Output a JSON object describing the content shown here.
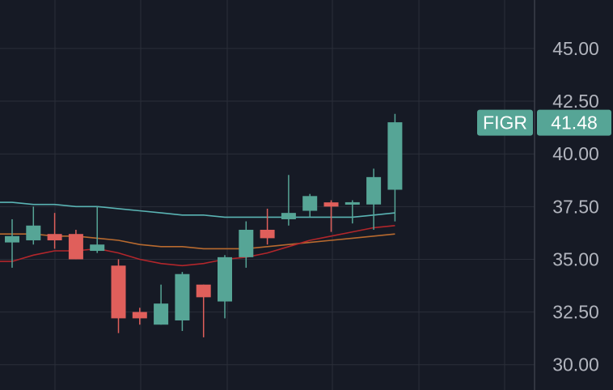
{
  "chart_data": {
    "type": "candlestick",
    "ylim": [
      28.8,
      47.3
    ],
    "y_ticks": [
      "30.00",
      "32.50",
      "35.00",
      "37.50",
      "40.00",
      "42.50",
      "45.00"
    ],
    "grid": true,
    "symbol_label": "FIGR",
    "last_price_label": "41.48",
    "last_price": 41.48,
    "colors": {
      "background": "#161a25",
      "grid": "#2a2e39",
      "up": "#56a596",
      "down": "#e05f5b",
      "ma_long": "#5ab4b4",
      "ma_mid": "#b86a2f",
      "ma_short": "#b2262b",
      "tag": "#56a596",
      "axis_text": "#b2b5be"
    },
    "candles": [
      {
        "o": 35.8,
        "h": 36.9,
        "l": 34.6,
        "c": 36.1
      },
      {
        "o": 35.9,
        "h": 37.5,
        "l": 35.7,
        "c": 36.6
      },
      {
        "o": 36.2,
        "h": 37.2,
        "l": 35.5,
        "c": 35.9
      },
      {
        "o": 36.2,
        "h": 36.4,
        "l": 35.0,
        "c": 35.0
      },
      {
        "o": 35.4,
        "h": 37.5,
        "l": 35.3,
        "c": 35.7
      },
      {
        "o": 34.7,
        "h": 35.0,
        "l": 31.5,
        "c": 32.2
      },
      {
        "o": 32.5,
        "h": 32.7,
        "l": 31.9,
        "c": 32.2
      },
      {
        "o": 31.9,
        "h": 33.8,
        "l": 31.9,
        "c": 32.9
      },
      {
        "o": 32.1,
        "h": 34.4,
        "l": 31.6,
        "c": 34.3
      },
      {
        "o": 33.8,
        "h": 33.8,
        "l": 31.3,
        "c": 33.2
      },
      {
        "o": 33.0,
        "h": 35.2,
        "l": 32.2,
        "c": 35.1
      },
      {
        "o": 35.1,
        "h": 36.8,
        "l": 34.6,
        "c": 36.4
      },
      {
        "o": 36.4,
        "h": 37.4,
        "l": 35.7,
        "c": 36.0
      },
      {
        "o": 36.9,
        "h": 39.0,
        "l": 36.6,
        "c": 37.2
      },
      {
        "o": 37.3,
        "h": 38.1,
        "l": 37.0,
        "c": 38.0
      },
      {
        "o": 37.7,
        "h": 37.8,
        "l": 36.3,
        "c": 37.5
      },
      {
        "o": 37.6,
        "h": 37.8,
        "l": 36.7,
        "c": 37.7
      },
      {
        "o": 37.6,
        "h": 39.3,
        "l": 36.4,
        "c": 38.9
      },
      {
        "o": 38.3,
        "h": 41.9,
        "l": 36.8,
        "c": 41.5
      }
    ],
    "moving_averages": [
      {
        "key": "ma_long",
        "values": [
          37.7,
          37.6,
          37.6,
          37.5,
          37.5,
          37.4,
          37.3,
          37.2,
          37.1,
          37.1,
          37.0,
          37.0,
          37.0,
          37.0,
          37.0,
          37.0,
          37.0,
          37.1,
          37.2
        ]
      },
      {
        "key": "ma_mid",
        "values": [
          36.2,
          36.2,
          36.1,
          36.1,
          36.0,
          35.9,
          35.7,
          35.6,
          35.6,
          35.5,
          35.5,
          35.5,
          35.6,
          35.7,
          35.8,
          35.9,
          36.0,
          36.1,
          36.2
        ]
      },
      {
        "key": "ma_short",
        "values": [
          34.9,
          35.2,
          35.4,
          35.4,
          35.5,
          35.3,
          35.0,
          34.8,
          34.7,
          34.8,
          35.0,
          35.1,
          35.3,
          35.6,
          35.9,
          36.1,
          36.3,
          36.5,
          36.6
        ]
      }
    ]
  }
}
